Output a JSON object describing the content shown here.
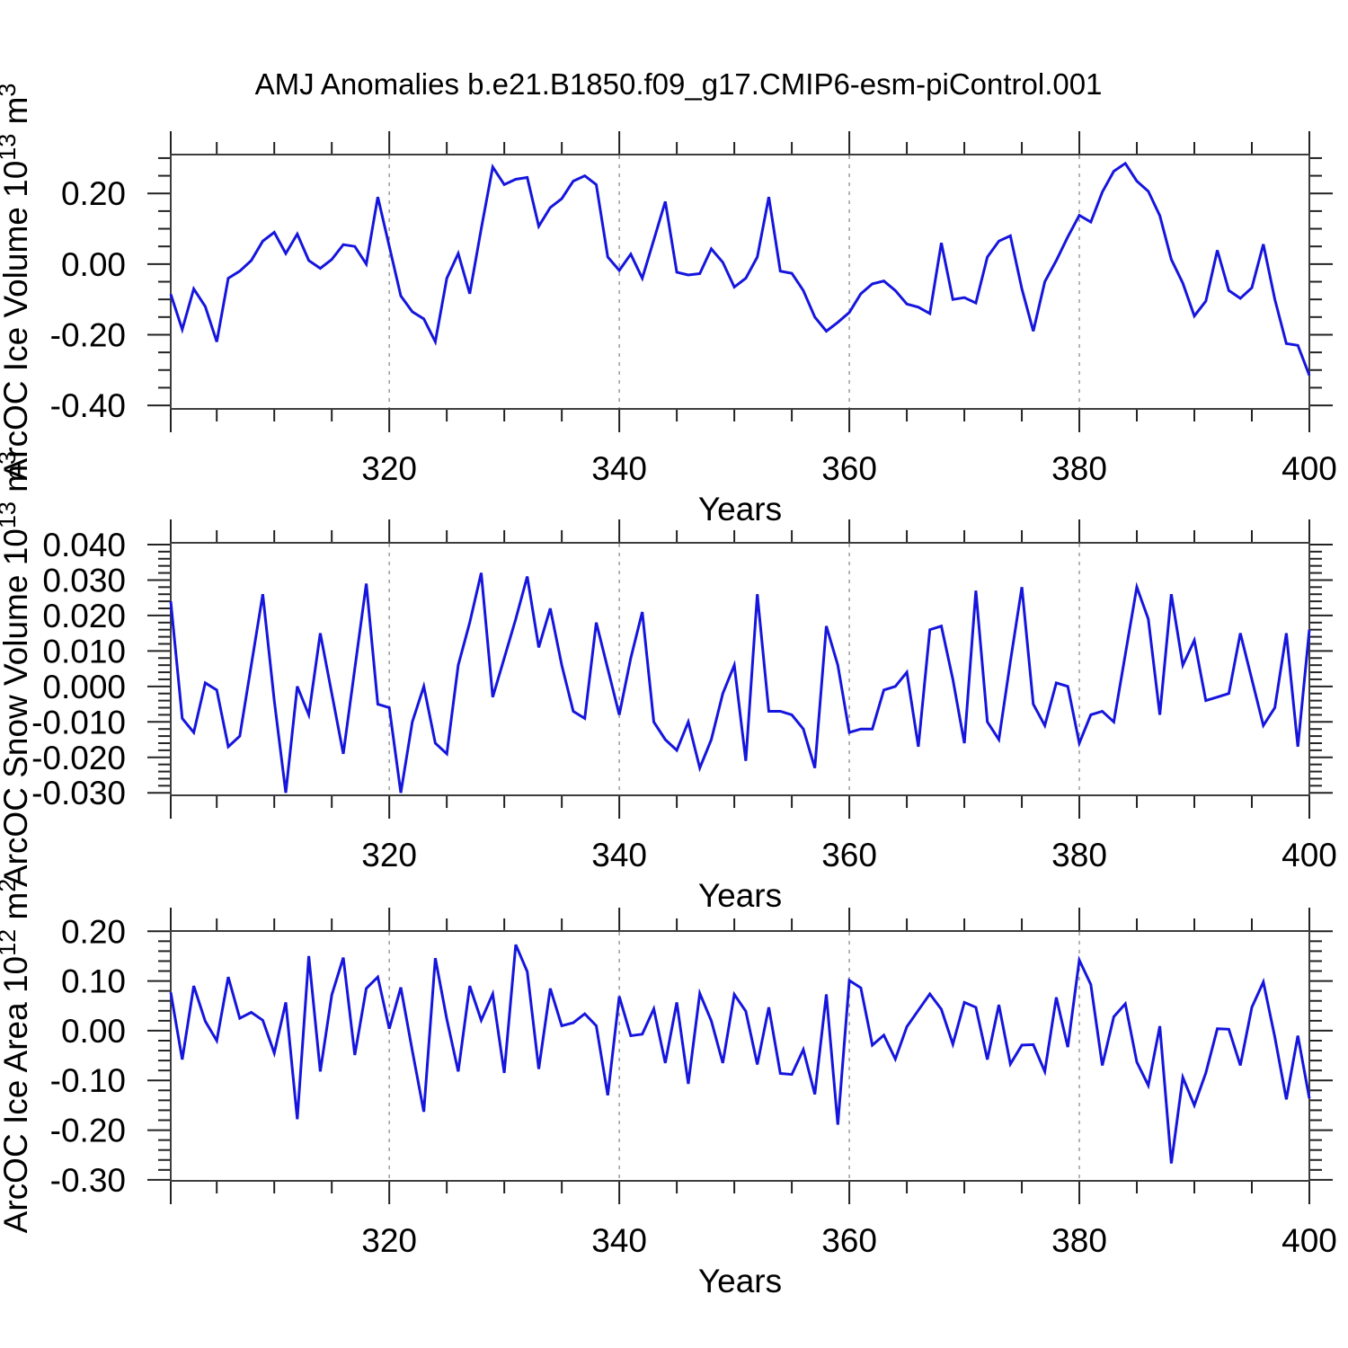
{
  "title": "AMJ Anomalies b.e21.B1850.f09_g17.CMIP6-esm-piControl.001",
  "line_color": "#1515dd",
  "grid_color": "#9c9c9c",
  "axis_color": "#3d3d3d",
  "tick_color": "#222222",
  "x_axis": {
    "label": "Years",
    "range": [
      301,
      400
    ],
    "major_ticks": [
      320,
      340,
      360,
      380,
      400
    ],
    "major_labels": [
      "320",
      "340",
      "360",
      "380",
      "400"
    ],
    "minor_step": 5,
    "grid_years": [
      320,
      340,
      360,
      380
    ]
  },
  "years": [
    301,
    302,
    303,
    304,
    305,
    306,
    307,
    308,
    309,
    310,
    311,
    312,
    313,
    314,
    315,
    316,
    317,
    318,
    319,
    320,
    321,
    322,
    323,
    324,
    325,
    326,
    327,
    328,
    329,
    330,
    331,
    332,
    333,
    334,
    335,
    336,
    337,
    338,
    339,
    340,
    341,
    342,
    343,
    344,
    345,
    346,
    347,
    348,
    349,
    350,
    351,
    352,
    353,
    354,
    355,
    356,
    357,
    358,
    359,
    360,
    361,
    362,
    363,
    364,
    365,
    366,
    367,
    368,
    369,
    370,
    371,
    372,
    373,
    374,
    375,
    376,
    377,
    378,
    379,
    380,
    381,
    382,
    383,
    384,
    385,
    386,
    387,
    388,
    389,
    390,
    391,
    392,
    393,
    394,
    395,
    396,
    397,
    398,
    399,
    400
  ],
  "chart_data": [
    {
      "type": "line",
      "name": "ice-volume",
      "xlabel": "Years",
      "ylabel": "ArcOC Ice Volume 10^13 m^3",
      "ylabel_segments": [
        [
          "ArcOC Ice Volume 10",
          false
        ],
        [
          "13",
          true
        ],
        [
          " m",
          false
        ],
        [
          "3",
          true
        ]
      ],
      "ylim": [
        -0.41,
        0.31
      ],
      "y_major": [
        [
          0.2,
          "0.20"
        ],
        [
          0.0,
          "0.00"
        ],
        [
          -0.2,
          "-0.20"
        ],
        [
          -0.4,
          "-0.40"
        ]
      ],
      "y_minor_step": 0.05,
      "values": [
        -0.085,
        -0.185,
        -0.07,
        -0.12,
        -0.22,
        -0.04,
        -0.02,
        0.01,
        0.065,
        0.09,
        0.03,
        0.085,
        0.01,
        -0.012,
        0.013,
        0.055,
        0.05,
        0.0,
        0.19,
        0.05,
        -0.09,
        -0.135,
        -0.155,
        -0.22,
        -0.04,
        0.03,
        -0.084,
        0.1,
        0.275,
        0.225,
        0.24,
        0.245,
        0.107,
        0.16,
        0.185,
        0.235,
        0.25,
        0.225,
        0.02,
        -0.018,
        0.028,
        -0.04,
        0.068,
        0.177,
        -0.023,
        -0.031,
        -0.027,
        0.043,
        0.005,
        -0.065,
        -0.04,
        0.02,
        0.19,
        -0.02,
        -0.026,
        -0.075,
        -0.15,
        -0.19,
        -0.165,
        -0.137,
        -0.084,
        -0.056,
        -0.048,
        -0.075,
        -0.113,
        -0.122,
        -0.14,
        0.06,
        -0.1,
        -0.095,
        -0.11,
        0.02,
        0.065,
        0.08,
        -0.07,
        -0.19,
        -0.05,
        0.01,
        0.077,
        0.138,
        0.119,
        0.204,
        0.263,
        0.285,
        0.235,
        0.206,
        0.137,
        0.013,
        -0.054,
        -0.147,
        -0.105,
        0.039,
        -0.075,
        -0.097,
        -0.067,
        0.056,
        -0.1,
        -0.225,
        -0.23,
        -0.315
      ]
    },
    {
      "type": "line",
      "name": "snow-volume",
      "xlabel": "Years",
      "ylabel": "ArcOC Snow Volume 10^13 m^3",
      "ylabel_segments": [
        [
          "ArcOC Snow Volume 10",
          false
        ],
        [
          "13",
          true
        ],
        [
          " m",
          false
        ],
        [
          "3",
          true
        ]
      ],
      "ylim": [
        -0.0307,
        0.0405
      ],
      "y_major": [
        [
          0.04,
          "0.040"
        ],
        [
          0.03,
          "0.030"
        ],
        [
          0.02,
          "0.020"
        ],
        [
          0.01,
          "0.010"
        ],
        [
          0.0,
          "0.000"
        ],
        [
          -0.01,
          "-0.010"
        ],
        [
          -0.02,
          "-0.020"
        ],
        [
          -0.03,
          "-0.030"
        ]
      ],
      "y_minor_step": 0.002,
      "values": [
        0.024,
        -0.009,
        -0.013,
        0.001,
        -0.001,
        -0.017,
        -0.014,
        0.006,
        0.026,
        -0.004,
        -0.03,
        0.0,
        -0.008,
        0.015,
        -0.002,
        -0.019,
        0.005,
        0.029,
        -0.005,
        -0.006,
        -0.03,
        -0.01,
        0.0,
        -0.016,
        -0.019,
        0.006,
        0.018,
        0.032,
        -0.003,
        0.008,
        0.019,
        0.031,
        0.011,
        0.022,
        0.006,
        -0.007,
        -0.009,
        0.018,
        0.005,
        -0.008,
        0.008,
        0.021,
        -0.01,
        -0.015,
        -0.018,
        -0.01,
        -0.023,
        -0.015,
        -0.002,
        0.006,
        -0.021,
        0.026,
        -0.007,
        -0.007,
        -0.008,
        -0.012,
        -0.023,
        0.017,
        0.006,
        -0.013,
        -0.012,
        -0.012,
        -0.001,
        0.0,
        0.004,
        -0.017,
        0.016,
        0.017,
        0.002,
        -0.016,
        0.027,
        -0.01,
        -0.015,
        0.007,
        0.028,
        -0.005,
        -0.011,
        0.001,
        0.0,
        -0.016,
        -0.008,
        -0.007,
        -0.01,
        0.009,
        0.028,
        0.019,
        -0.008,
        0.026,
        0.006,
        0.013,
        -0.004,
        -0.003,
        -0.002,
        0.015,
        0.002,
        -0.011,
        -0.006,
        0.015,
        -0.017,
        0.016
      ]
    },
    {
      "type": "line",
      "name": "ice-area",
      "xlabel": "Years",
      "ylabel": "ArcOC Ice Area 10^12 m^2",
      "ylabel_segments": [
        [
          "ArcOC Ice Area 10",
          false
        ],
        [
          "12",
          true
        ],
        [
          " m",
          false
        ],
        [
          "2",
          true
        ]
      ],
      "ylim": [
        -0.302,
        0.2005
      ],
      "y_major": [
        [
          0.2,
          "0.20"
        ],
        [
          0.1,
          "0.10"
        ],
        [
          0.0,
          "0.00"
        ],
        [
          -0.1,
          "-0.10"
        ],
        [
          -0.2,
          "-0.20"
        ],
        [
          -0.3,
          "-0.30"
        ]
      ],
      "y_minor_step": 0.02,
      "values": [
        0.077,
        -0.058,
        0.09,
        0.019,
        -0.02,
        0.108,
        0.025,
        0.037,
        0.021,
        -0.045,
        0.057,
        -0.178,
        0.15,
        -0.082,
        0.072,
        0.147,
        -0.049,
        0.085,
        0.108,
        0.004,
        0.087,
        -0.04,
        -0.163,
        0.146,
        0.023,
        -0.082,
        0.09,
        0.021,
        0.074,
        -0.085,
        0.173,
        0.119,
        -0.077,
        0.085,
        0.01,
        0.016,
        0.034,
        0.01,
        -0.13,
        0.069,
        -0.01,
        -0.007,
        0.044,
        -0.065,
        0.057,
        -0.107,
        0.075,
        0.02,
        -0.065,
        0.073,
        0.039,
        -0.068,
        0.047,
        -0.086,
        -0.088,
        -0.038,
        -0.128,
        0.073,
        -0.189,
        0.101,
        0.086,
        -0.029,
        -0.009,
        -0.057,
        0.008,
        0.041,
        0.074,
        0.043,
        -0.027,
        0.057,
        0.047,
        -0.058,
        0.052,
        -0.067,
        -0.029,
        -0.028,
        -0.082,
        0.067,
        -0.033,
        0.142,
        0.093,
        -0.07,
        0.028,
        0.054,
        -0.063,
        -0.11,
        0.009,
        -0.267,
        -0.094,
        -0.15,
        -0.085,
        0.004,
        0.003,
        -0.07,
        0.047,
        0.098,
        -0.013,
        -0.138,
        -0.01,
        -0.136
      ]
    }
  ]
}
